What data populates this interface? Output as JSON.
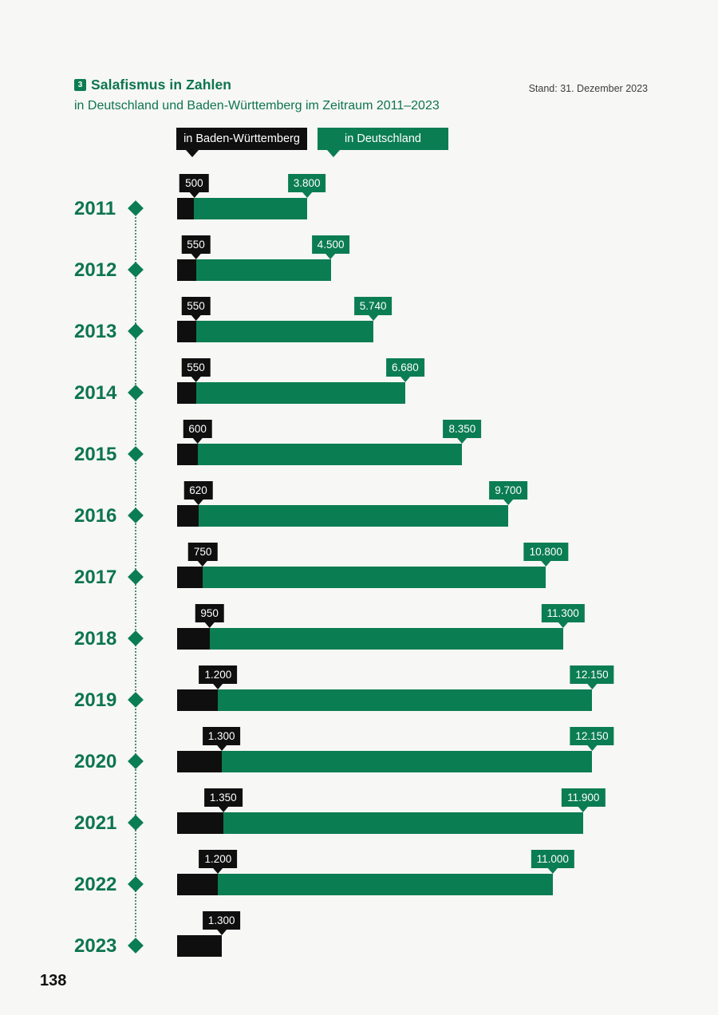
{
  "page": {
    "background": "#f7f7f5",
    "accent_green": "#0b7d52",
    "black": "#0f0f0f",
    "page_number": "138"
  },
  "header": {
    "badge": "3",
    "title": "Salafismus in Zahlen",
    "subtitle": "in Deutschland und Baden-Württemberg im Zeitraum 2011–2023",
    "stand": "Stand: 31. Dezember 2023"
  },
  "legend": {
    "items": [
      {
        "label": "in Baden-Württemberg",
        "color": "#0f0f0f"
      },
      {
        "label": "in Deutschland",
        "color": "#0b7d52"
      }
    ]
  },
  "chart_data": {
    "type": "bar",
    "orientation": "horizontal",
    "title": "Salafismus in Zahlen in Deutschland und Baden-Württemberg im Zeitraum 2011–2023",
    "categories": [
      "2011",
      "2012",
      "2013",
      "2014",
      "2015",
      "2016",
      "2017",
      "2018",
      "2019",
      "2020",
      "2021",
      "2022",
      "2023"
    ],
    "series": [
      {
        "name": "in Baden-Württemberg",
        "color": "#0f0f0f",
        "values": [
          500,
          550,
          550,
          550,
          600,
          620,
          750,
          950,
          1200,
          1300,
          1350,
          1200,
          1300
        ],
        "labels": [
          "500",
          "550",
          "550",
          "550",
          "600",
          "620",
          "750",
          "950",
          "1.200",
          "1.300",
          "1.350",
          "1.200",
          "1.300"
        ]
      },
      {
        "name": "in Deutschland",
        "color": "#0b7d52",
        "values": [
          3800,
          4500,
          5740,
          6680,
          8350,
          9700,
          10800,
          11300,
          12150,
          12150,
          11900,
          11000,
          null
        ],
        "labels": [
          "3.800",
          "4.500",
          "5.740",
          "6.680",
          "8.350",
          "9.700",
          "10.800",
          "11.300",
          "12.150",
          "12.150",
          "11.900",
          "11.000",
          null
        ]
      }
    ],
    "xlim": [
      0,
      12150
    ],
    "bar_style": "stacked-overlay",
    "data_labels": true,
    "legend_position": "top",
    "grid": false
  }
}
